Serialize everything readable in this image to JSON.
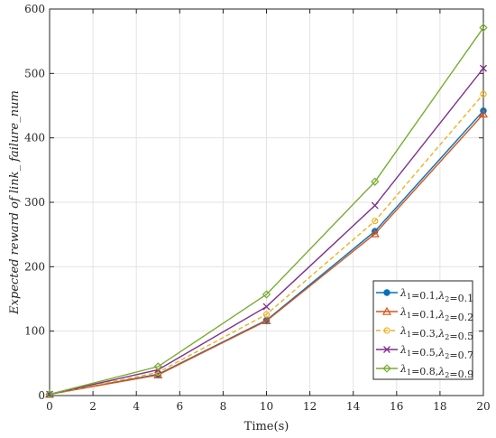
{
  "chart_data": {
    "type": "line",
    "xlabel": "Time(s)",
    "ylabel": "Expected reward of link_ failure_num",
    "xlim": [
      0,
      20
    ],
    "ylim": [
      0,
      600
    ],
    "xticks": [
      0,
      2,
      4,
      6,
      8,
      10,
      12,
      14,
      16,
      18,
      20
    ],
    "yticks": [
      0,
      100,
      200,
      300,
      400,
      500,
      600
    ],
    "grid": true,
    "legend_position": "bottom-right",
    "x": [
      0,
      5,
      10,
      15,
      20
    ],
    "series": [
      {
        "name": "λ1=0.1,λ2=0.1",
        "values": [
          2,
          33,
          117,
          255,
          442
        ],
        "color": "#0072BD",
        "marker": "circle",
        "dash": "solid"
      },
      {
        "name": "λ1=0.1,λ2=0.2",
        "values": [
          2,
          32,
          116,
          251,
          437
        ],
        "color": "#D95319",
        "marker": "triangle",
        "dash": "solid"
      },
      {
        "name": "λ1=0.3,λ2=0.5",
        "values": [
          2,
          36,
          126,
          271,
          468
        ],
        "color": "#EDB120",
        "marker": "circle-open",
        "dash": "dashed"
      },
      {
        "name": "λ1=0.5,λ2=0.7",
        "values": [
          2,
          40,
          138,
          295,
          508
        ],
        "color": "#7E2F8E",
        "marker": "x",
        "dash": "solid"
      },
      {
        "name": "λ1=0.8,λ2=0.9",
        "values": [
          2,
          45,
          157,
          332,
          571
        ],
        "color": "#77AC30",
        "marker": "diamond",
        "dash": "solid"
      }
    ]
  }
}
